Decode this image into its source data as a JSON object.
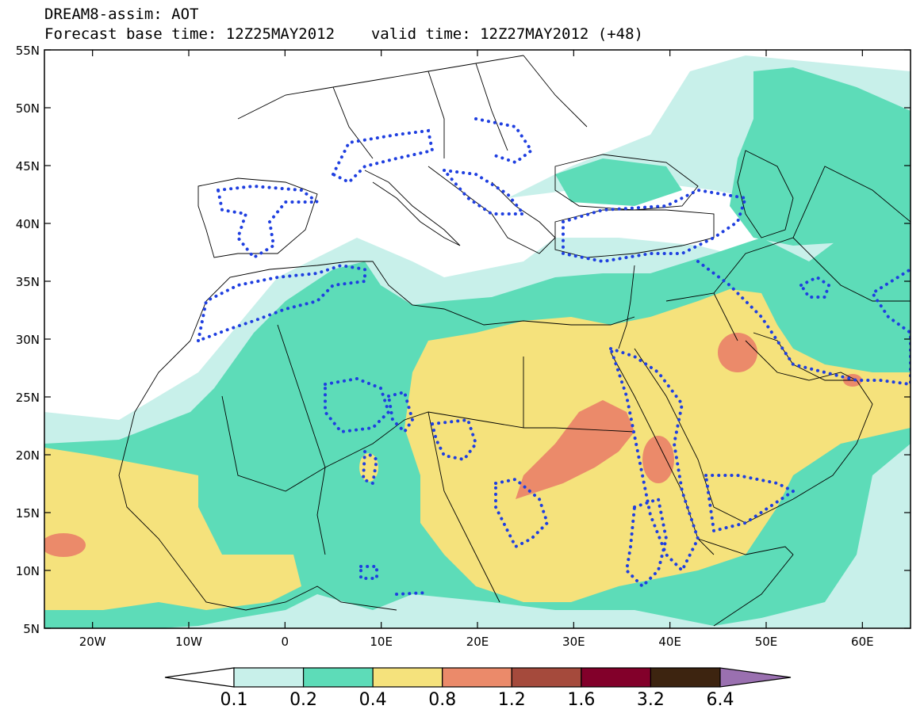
{
  "title": {
    "line1": "DREAM8-assim: AOT",
    "base_time": "Forecast base time: 12Z25MAY2012",
    "valid_time": "valid time: 12Z27MAY2012 (+48)"
  },
  "axes": {
    "lat_labels": [
      "55N",
      "50N",
      "45N",
      "40N",
      "35N",
      "30N",
      "25N",
      "20N",
      "15N",
      "10N",
      "5N"
    ],
    "lat_values": [
      55,
      50,
      45,
      40,
      35,
      30,
      25,
      20,
      15,
      10,
      5
    ],
    "lon_labels": [
      "20W",
      "10W",
      "0",
      "10E",
      "20E",
      "30E",
      "40E",
      "50E",
      "60E"
    ],
    "lon_values": [
      -20,
      -10,
      0,
      10,
      20,
      30,
      40,
      50,
      60
    ],
    "lon_range": [
      -25,
      65
    ],
    "lat_range": [
      5,
      55
    ]
  },
  "colorbar": {
    "labels": [
      "0.1",
      "0.2",
      "0.4",
      "0.8",
      "1.2",
      "1.6",
      "3.2",
      "6.4"
    ],
    "colors": [
      "#c8f0ea",
      "#5ddcb8",
      "#f5e27c",
      "#eb8a6a",
      "#a54a3c",
      "#82002a",
      "#3d2410",
      "#9a70b0"
    ],
    "below_color": "#ffffff"
  },
  "palette": {
    "aot_0_1": "#c8f0ea",
    "aot_0_2": "#5ddcb8",
    "aot_0_4": "#f5e27c",
    "aot_0_8": "#eb8a6a",
    "contour_dots": "#1f3fe0",
    "coastline": "#000000"
  }
}
